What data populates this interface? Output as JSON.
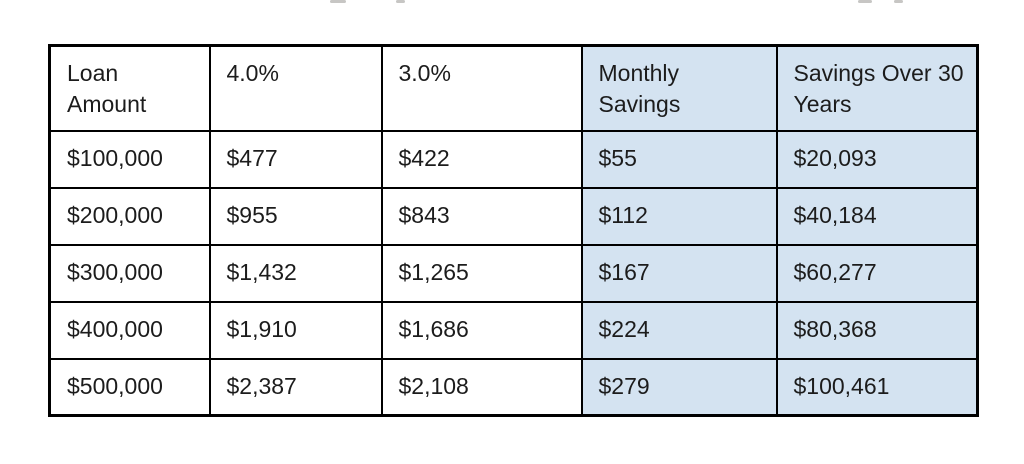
{
  "chart_data": {
    "type": "table",
    "columns": [
      "Loan Amount",
      "4.0%",
      "3.0%",
      "Monthly Savings",
      "Savings Over 30 Years"
    ],
    "rows": [
      [
        "$100,000",
        "$477",
        "$422",
        "$55",
        "$20,093"
      ],
      [
        "$200,000",
        "$955",
        "$843",
        "$112",
        "$40,184"
      ],
      [
        "$300,000",
        "$1,432",
        "$1,265",
        "$167",
        "$60,277"
      ],
      [
        "$400,000",
        "$1,910",
        "$1,686",
        "$224",
        "$80,368"
      ],
      [
        "$500,000",
        "$2,387",
        "$2,108",
        "$279",
        "$100,461"
      ]
    ],
    "highlighted_columns": [
      3,
      4
    ],
    "highlight_color": "#d4e3f1",
    "border_color": "#000000",
    "text_color": "#1c1c1c",
    "background_color": "#ffffff"
  }
}
